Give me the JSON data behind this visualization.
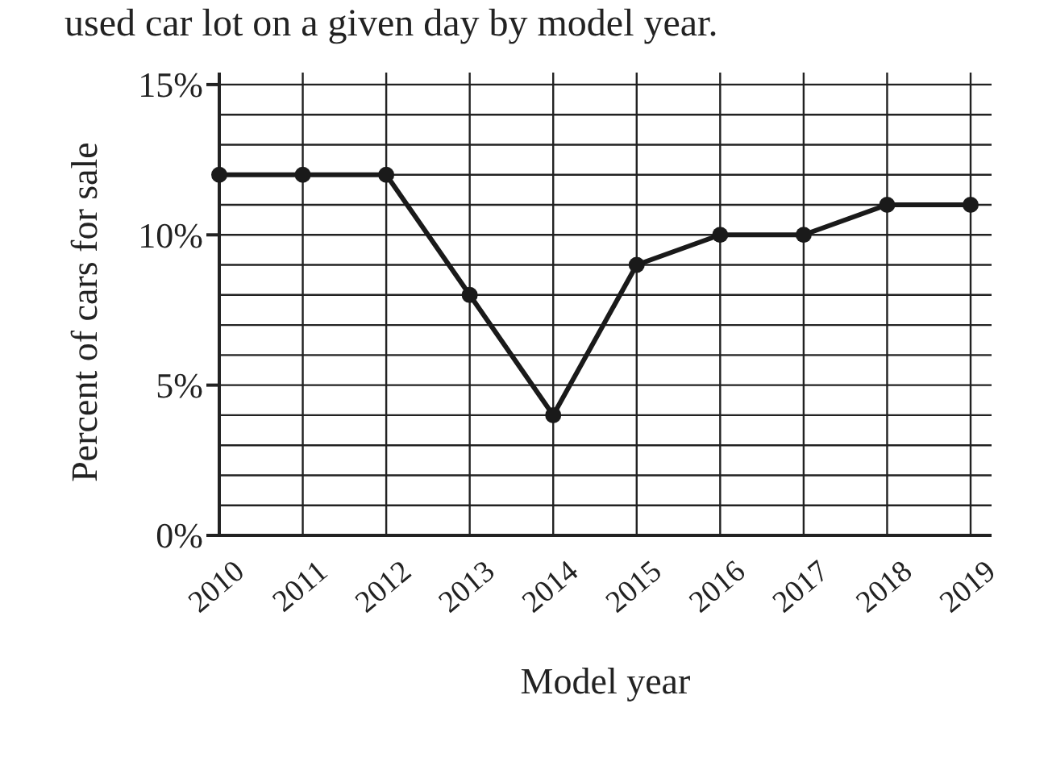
{
  "chart_data": {
    "type": "line",
    "title": "used car lot on a given day by model year.",
    "xlabel": "Model year",
    "ylabel": "Percent of cars for sale",
    "categories": [
      "2010",
      "2011",
      "2012",
      "2013",
      "2014",
      "2015",
      "2016",
      "2017",
      "2018",
      "2019"
    ],
    "series": [
      {
        "color": "#1a1a1a",
        "values": [
          12,
          12,
          12,
          8,
          4,
          9,
          10,
          10,
          11,
          11
        ]
      }
    ],
    "ylim": [
      0,
      15.4
    ],
    "yticks": [
      {
        "value": 0,
        "label": "0%"
      },
      {
        "value": 1,
        "label": null
      },
      {
        "value": 2,
        "label": null
      },
      {
        "value": 3,
        "label": null
      },
      {
        "value": 4,
        "label": null
      },
      {
        "value": 5,
        "label": "5%"
      },
      {
        "value": 6,
        "label": null
      },
      {
        "value": 7,
        "label": null
      },
      {
        "value": 8,
        "label": null
      },
      {
        "value": 9,
        "label": null
      },
      {
        "value": 10,
        "label": "10%"
      },
      {
        "value": 11,
        "label": null
      },
      {
        "value": 12,
        "label": null
      },
      {
        "value": 13,
        "label": null
      },
      {
        "value": 14,
        "label": null
      },
      {
        "value": 15,
        "label": "15%"
      }
    ],
    "grid": true,
    "marker": "circle",
    "line_style": "solid"
  }
}
